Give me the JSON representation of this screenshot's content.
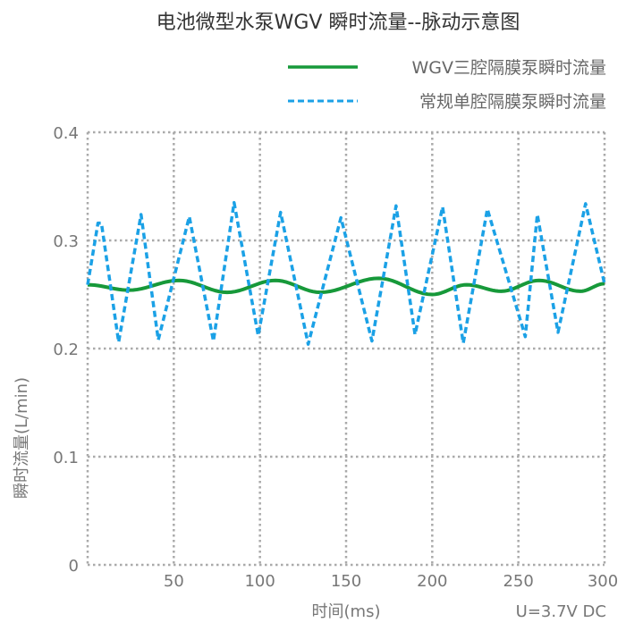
{
  "chart_data": {
    "type": "line",
    "title": "电池微型水泵WGV 瞬时流量--脉动示意图",
    "xlabel": "时间(ms)",
    "ylabel": "瞬时流量(L/min)",
    "annotation": "U=3.7V DC",
    "xlim": [
      0,
      300
    ],
    "ylim": [
      0,
      0.4
    ],
    "xticks": [
      "50",
      "100",
      "150",
      "200",
      "250",
      "300"
    ],
    "yticks": [
      "0",
      "0.1",
      "0.2",
      "0.3",
      "0.4"
    ],
    "grid": true,
    "legend_position": "top-right",
    "series": [
      {
        "name": "WGV三腔隔膜泵瞬时流量",
        "color": "#17993a",
        "style": "solid",
        "x": [
          0,
          24,
          53,
          81,
          109,
          135,
          169,
          200,
          220,
          240,
          262,
          286,
          300
        ],
        "y": [
          0.259,
          0.254,
          0.263,
          0.252,
          0.263,
          0.252,
          0.265,
          0.25,
          0.259,
          0.253,
          0.263,
          0.253,
          0.26
        ]
      },
      {
        "name": "常规单腔隔膜泵瞬时流量",
        "color": "#1ba1e6",
        "style": "dashed",
        "x": [
          0,
          6,
          8,
          18,
          31,
          41,
          59,
          73,
          85,
          99,
          112,
          128,
          147,
          165,
          179,
          190,
          206,
          218,
          232,
          254,
          261,
          273,
          289,
          300
        ],
        "y": [
          0.259,
          0.316,
          0.316,
          0.206,
          0.324,
          0.208,
          0.322,
          0.207,
          0.335,
          0.212,
          0.326,
          0.204,
          0.321,
          0.207,
          0.332,
          0.213,
          0.331,
          0.205,
          0.329,
          0.211,
          0.324,
          0.215,
          0.334,
          0.26
        ]
      }
    ]
  }
}
